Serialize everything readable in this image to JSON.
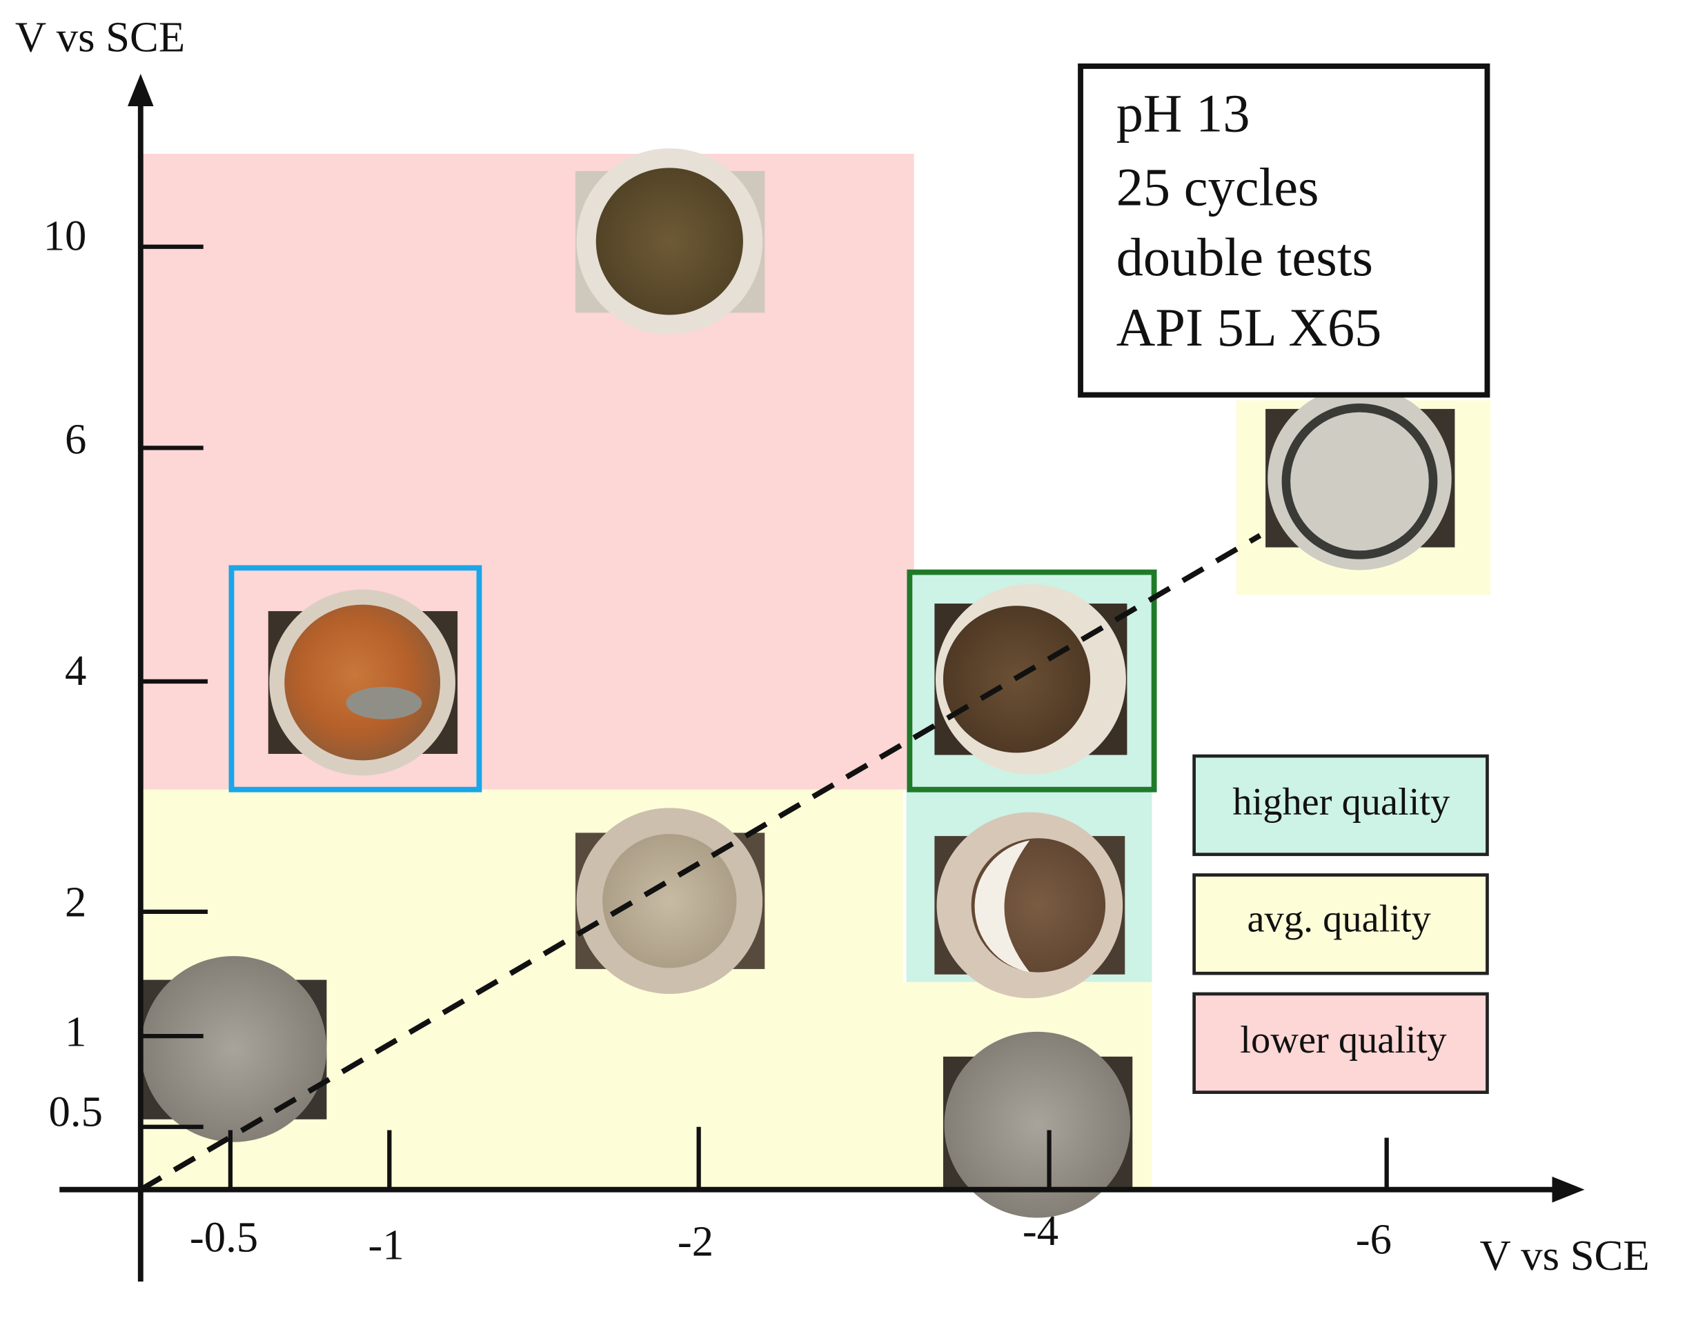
{
  "y_axis": {
    "label": "V vs SCE",
    "ticks": [
      "10",
      "6",
      "4",
      "2",
      "1",
      "0.5"
    ]
  },
  "x_axis": {
    "label": "V vs SCE",
    "ticks": [
      "-0.5",
      "-1",
      "-2",
      "-4",
      "-6"
    ]
  },
  "info_box": {
    "lines": [
      "pH 13",
      "25 cycles",
      "double tests",
      "API 5L X65"
    ]
  },
  "legend": {
    "items": [
      "higher quality",
      "avg. quality",
      "lower quality"
    ]
  }
}
